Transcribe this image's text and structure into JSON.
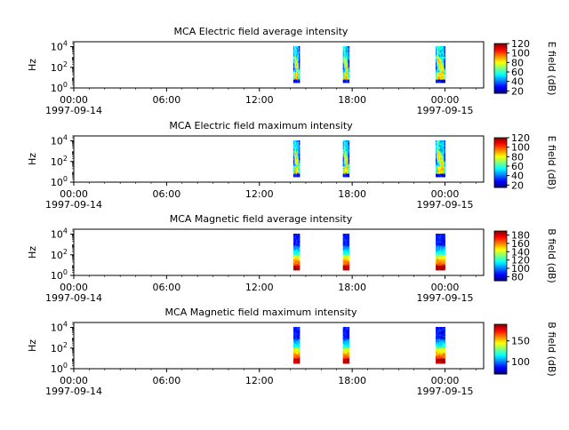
{
  "chart_data": [
    {
      "type": "heatmap",
      "title": "MCA  Electric field average intensity",
      "ylabel": "Hz",
      "ylim": [
        1,
        30000
      ],
      "yscale": "log",
      "y_ticks": [
        "10",
        "10",
        "10"
      ],
      "y_tick_exponents": [
        "0",
        "2",
        "4"
      ],
      "x_ticks": [
        "00:00",
        "06:00",
        "12:00",
        "18:00",
        "00:00"
      ],
      "x_tick_hours": [
        0,
        6,
        12,
        18,
        24
      ],
      "x_date_labels": [
        "1997-09-14",
        "1997-09-15"
      ],
      "xlim_hours": [
        0,
        26.5
      ],
      "colorbar": {
        "label": "E field (dB)",
        "ticks": [
          20,
          40,
          60,
          80,
          100,
          120
        ],
        "range": [
          15,
          120
        ]
      },
      "coverage_hours": [
        [
          14.2,
          14.6
        ],
        [
          17.4,
          17.8
        ],
        [
          23.4,
          24.0
        ]
      ],
      "pattern": "electric"
    },
    {
      "type": "heatmap",
      "title": "MCA  Electric field maximum intensity",
      "ylabel": "Hz",
      "ylim": [
        1,
        30000
      ],
      "yscale": "log",
      "y_ticks": [
        "10",
        "10",
        "10"
      ],
      "y_tick_exponents": [
        "0",
        "2",
        "4"
      ],
      "x_ticks": [
        "00:00",
        "06:00",
        "12:00",
        "18:00",
        "00:00"
      ],
      "x_tick_hours": [
        0,
        6,
        12,
        18,
        24
      ],
      "x_date_labels": [
        "1997-09-14",
        "1997-09-15"
      ],
      "xlim_hours": [
        0,
        26.5
      ],
      "colorbar": {
        "label": "E field (dB)",
        "ticks": [
          20,
          40,
          60,
          80,
          100,
          120
        ],
        "range": [
          15,
          120
        ]
      },
      "coverage_hours": [
        [
          14.2,
          14.6
        ],
        [
          17.4,
          17.8
        ],
        [
          23.4,
          24.0
        ]
      ],
      "pattern": "electric"
    },
    {
      "type": "heatmap",
      "title": "MCA  Magnetic field average intensity",
      "ylabel": "Hz",
      "ylim": [
        1,
        30000
      ],
      "yscale": "log",
      "y_ticks": [
        "10",
        "10",
        "10"
      ],
      "y_tick_exponents": [
        "0",
        "2",
        "4"
      ],
      "x_ticks": [
        "00:00",
        "06:00",
        "12:00",
        "18:00",
        "00:00"
      ],
      "x_tick_hours": [
        0,
        6,
        12,
        18,
        24
      ],
      "x_date_labels": [
        "1997-09-14",
        "1997-09-15"
      ],
      "xlim_hours": [
        0,
        26.5
      ],
      "colorbar": {
        "label": "B field (dB)",
        "ticks": [
          80,
          100,
          120,
          140,
          160,
          180
        ],
        "range": [
          70,
          190
        ]
      },
      "coverage_hours": [
        [
          14.2,
          14.6
        ],
        [
          17.4,
          17.8
        ],
        [
          23.4,
          24.0
        ]
      ],
      "pattern": "magnetic"
    },
    {
      "type": "heatmap",
      "title": "MCA  Magnetic field maximum intensity",
      "ylabel": "Hz",
      "ylim": [
        1,
        30000
      ],
      "yscale": "log",
      "y_ticks": [
        "10",
        "10",
        "10"
      ],
      "y_tick_exponents": [
        "0",
        "2",
        "4"
      ],
      "x_ticks": [
        "00:00",
        "06:00",
        "12:00",
        "18:00",
        "00:00"
      ],
      "x_tick_hours": [
        0,
        6,
        12,
        18,
        24
      ],
      "x_date_labels": [
        "1997-09-14",
        "1997-09-15"
      ],
      "xlim_hours": [
        0,
        26.5
      ],
      "colorbar": {
        "label": "B field (dB)",
        "ticks": [
          100,
          150
        ],
        "range": [
          70,
          190
        ]
      },
      "coverage_hours": [
        [
          14.2,
          14.6
        ],
        [
          17.4,
          17.8
        ],
        [
          23.4,
          24.0
        ]
      ],
      "pattern": "magnetic"
    }
  ]
}
